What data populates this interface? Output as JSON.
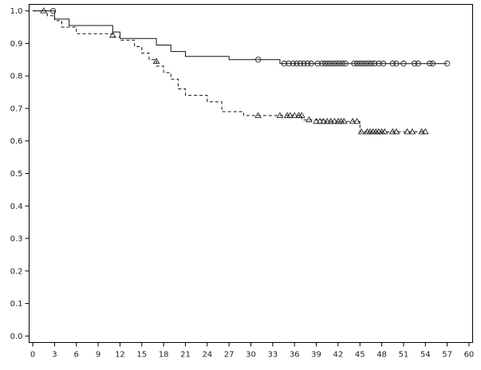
{
  "chart_data": {
    "type": "line",
    "title": "",
    "xlabel": "",
    "ylabel": "",
    "xlim": [
      -0.5,
      60.5
    ],
    "ylim": [
      -0.02,
      1.02
    ],
    "x_ticks": [
      0,
      3,
      6,
      9,
      12,
      15,
      18,
      21,
      24,
      27,
      30,
      33,
      36,
      39,
      42,
      45,
      48,
      51,
      54,
      57,
      60
    ],
    "x_tick_labels": [
      "0",
      "3",
      "6",
      "9",
      "12",
      "15",
      "18",
      "21",
      "24",
      "27",
      "30",
      "33",
      "36",
      "39",
      "42",
      "45",
      "48",
      "51",
      "54",
      "57",
      "60"
    ],
    "y_ticks": [
      0.0,
      0.1,
      0.2,
      0.3,
      0.4,
      0.5,
      0.6,
      0.7,
      0.8,
      0.9,
      1.0
    ],
    "y_tick_labels": [
      "0.0",
      "0.1",
      "0.2",
      "0.3",
      "0.4",
      "0.5",
      "0.6",
      "0.7",
      "0.8",
      "0.9",
      "1.0"
    ],
    "grid": false,
    "legend": "none",
    "series": [
      {
        "line_style": "solid",
        "censor_marker": "circle",
        "color": "#111111",
        "steps": [
          [
            0,
            1.0
          ],
          [
            3,
            0.975
          ],
          [
            5,
            0.955
          ],
          [
            11,
            0.935
          ],
          [
            12,
            0.915
          ],
          [
            17,
            0.895
          ],
          [
            19,
            0.875
          ],
          [
            21,
            0.86
          ],
          [
            27,
            0.85
          ],
          [
            34,
            0.838
          ],
          [
            57,
            0.838
          ]
        ],
        "censored": [
          [
            2.8,
            1.0
          ],
          [
            31,
            0.85
          ],
          [
            34.6,
            0.838
          ],
          [
            35.2,
            0.838
          ],
          [
            35.8,
            0.838
          ],
          [
            36.3,
            0.838
          ],
          [
            36.8,
            0.838
          ],
          [
            37.3,
            0.838
          ],
          [
            37.8,
            0.838
          ],
          [
            38.3,
            0.838
          ],
          [
            39.2,
            0.838
          ],
          [
            39.8,
            0.838
          ],
          [
            40.2,
            0.838
          ],
          [
            40.6,
            0.838
          ],
          [
            41.0,
            0.838
          ],
          [
            41.4,
            0.838
          ],
          [
            41.8,
            0.838
          ],
          [
            42.2,
            0.838
          ],
          [
            42.6,
            0.838
          ],
          [
            43.0,
            0.838
          ],
          [
            44.2,
            0.838
          ],
          [
            44.6,
            0.838
          ],
          [
            45.0,
            0.838
          ],
          [
            45.4,
            0.838
          ],
          [
            45.8,
            0.838
          ],
          [
            46.2,
            0.838
          ],
          [
            46.6,
            0.838
          ],
          [
            47.0,
            0.838
          ],
          [
            47.6,
            0.838
          ],
          [
            48.2,
            0.838
          ],
          [
            49.5,
            0.838
          ],
          [
            50.0,
            0.838
          ],
          [
            51.0,
            0.838
          ],
          [
            52.5,
            0.838
          ],
          [
            53.0,
            0.838
          ],
          [
            54.6,
            0.838
          ],
          [
            55.0,
            0.838
          ],
          [
            57.0,
            0.838
          ]
        ]
      },
      {
        "line_style": "dashed",
        "censor_marker": "triangle",
        "color": "#111111",
        "steps": [
          [
            0,
            1.0
          ],
          [
            2,
            0.985
          ],
          [
            3,
            0.97
          ],
          [
            4,
            0.95
          ],
          [
            6,
            0.93
          ],
          [
            11,
            0.92
          ],
          [
            12,
            0.91
          ],
          [
            14,
            0.89
          ],
          [
            15,
            0.87
          ],
          [
            16,
            0.85
          ],
          [
            17,
            0.83
          ],
          [
            18,
            0.81
          ],
          [
            19,
            0.79
          ],
          [
            20,
            0.76
          ],
          [
            21,
            0.74
          ],
          [
            24,
            0.72
          ],
          [
            26,
            0.69
          ],
          [
            29,
            0.678
          ],
          [
            37,
            0.665
          ],
          [
            40,
            0.66
          ],
          [
            45,
            0.628
          ],
          [
            54,
            0.628
          ]
        ],
        "censored": [
          [
            1.5,
            1.0
          ],
          [
            11.0,
            0.925
          ],
          [
            17.0,
            0.845
          ],
          [
            31.0,
            0.678
          ],
          [
            34.0,
            0.678
          ],
          [
            35.0,
            0.678
          ],
          [
            35.4,
            0.678
          ],
          [
            36.0,
            0.678
          ],
          [
            36.6,
            0.678
          ],
          [
            37.0,
            0.678
          ],
          [
            38.0,
            0.665
          ],
          [
            39.0,
            0.66
          ],
          [
            39.5,
            0.66
          ],
          [
            40.0,
            0.66
          ],
          [
            40.5,
            0.66
          ],
          [
            41.0,
            0.66
          ],
          [
            41.5,
            0.66
          ],
          [
            42.0,
            0.66
          ],
          [
            42.4,
            0.66
          ],
          [
            42.8,
            0.66
          ],
          [
            44.0,
            0.66
          ],
          [
            44.6,
            0.66
          ],
          [
            45.2,
            0.628
          ],
          [
            46.0,
            0.628
          ],
          [
            46.4,
            0.628
          ],
          [
            46.8,
            0.628
          ],
          [
            47.2,
            0.628
          ],
          [
            47.6,
            0.628
          ],
          [
            48.0,
            0.628
          ],
          [
            48.4,
            0.628
          ],
          [
            49.5,
            0.628
          ],
          [
            50.0,
            0.628
          ],
          [
            51.5,
            0.628
          ],
          [
            52.2,
            0.628
          ],
          [
            53.5,
            0.628
          ],
          [
            54.0,
            0.628
          ]
        ]
      }
    ]
  }
}
